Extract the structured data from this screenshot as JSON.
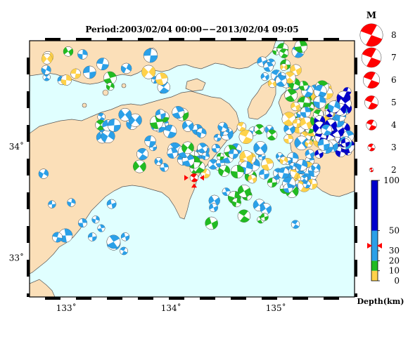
{
  "map": {
    "title": "Period:2003/02/04 00:00−−2013/02/04 09:05",
    "lat_labels": [
      {
        "value": 34,
        "text": "34˚"
      },
      {
        "value": 33,
        "text": "33˚"
      }
    ],
    "lon_labels": [
      {
        "value": 133,
        "text": "133˚"
      },
      {
        "value": 134,
        "text": "134˚"
      },
      {
        "value": 135,
        "text": "135˚"
      }
    ],
    "lon_range": [
      132.65,
      135.75
    ],
    "lat_range": [
      32.65,
      34.95
    ],
    "mainshock": {
      "lon": 134.22,
      "lat": 33.72
    },
    "colors": {
      "sea": "#e0ffff",
      "land": "#fbdfb8",
      "coast": "#555555",
      "shallow": "#ffd24a",
      "mid": "#22bb22",
      "deep": "#2ba0e8",
      "deepest": "#0000cc",
      "mainshock": "#ff0000"
    }
  },
  "magnitude_legend": {
    "title": "M",
    "items": [
      {
        "label": "8",
        "m": 8
      },
      {
        "label": "7",
        "m": 7
      },
      {
        "label": "6",
        "m": 6
      },
      {
        "label": "5",
        "m": 5
      },
      {
        "label": "4",
        "m": 4
      },
      {
        "label": "3",
        "m": 3
      },
      {
        "label": "2",
        "m": 2
      }
    ]
  },
  "depth_scale": {
    "title": "Depth(km)",
    "ticks": [
      {
        "label": "100",
        "value": 100
      },
      {
        "label": "50",
        "value": 50
      },
      {
        "label": "30",
        "value": 30
      },
      {
        "label": "20",
        "value": 20
      },
      {
        "label": "10",
        "value": 10
      },
      {
        "label": "0",
        "value": 0
      }
    ],
    "bands": [
      {
        "from": 0,
        "to": 10,
        "color": "#ffd24a"
      },
      {
        "from": 10,
        "to": 20,
        "color": "#22bb22"
      },
      {
        "from": 20,
        "to": 50,
        "color": "#2ba0e8"
      },
      {
        "from": 50,
        "to": 100,
        "color": "#0000cc"
      }
    ],
    "mainshock_depth": 35
  }
}
